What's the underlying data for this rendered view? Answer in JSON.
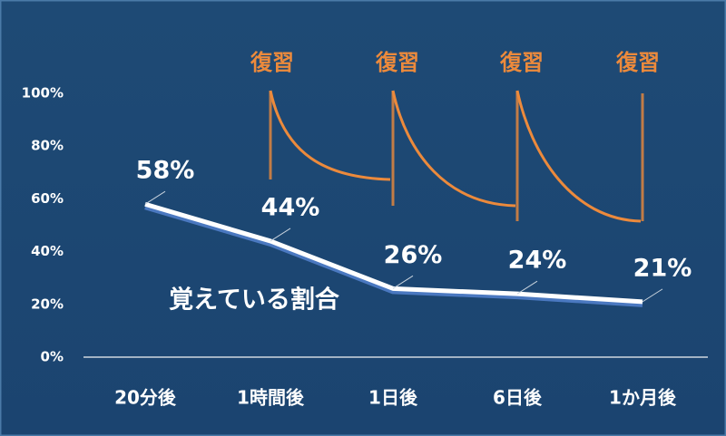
{
  "chart_data": {
    "type": "line",
    "categories": [
      "20分後",
      "1時間後",
      "1日後",
      "6日後",
      "1か月後"
    ],
    "series": [
      {
        "name": "覚えている割合",
        "color": "#ffffff",
        "values": [
          58,
          44,
          26,
          24,
          21
        ],
        "value_labels": [
          "58%",
          "44%",
          "26%",
          "24%",
          "21%"
        ]
      }
    ],
    "ylim": [
      0,
      100
    ],
    "yticks": [
      {
        "value": 0,
        "label": "0%"
      },
      {
        "value": 20,
        "label": "20%"
      },
      {
        "value": 40,
        "label": "40%"
      },
      {
        "value": 60,
        "label": "60%"
      },
      {
        "value": 80,
        "label": "80%"
      },
      {
        "value": 100,
        "label": "100%"
      }
    ],
    "annotations": [
      "復習",
      "復習",
      "復習",
      "復習"
    ],
    "annotation_color": "#ec8a3c"
  }
}
